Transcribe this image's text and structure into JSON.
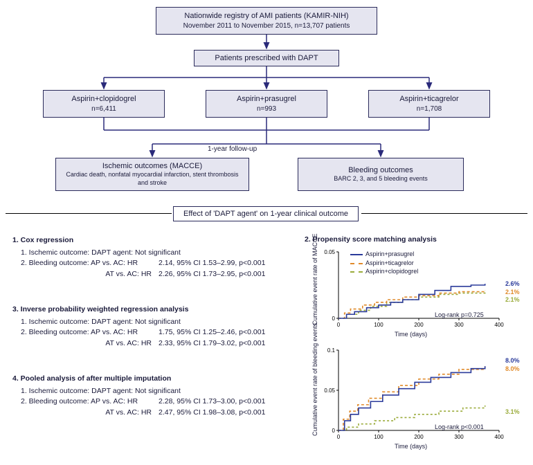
{
  "flow": {
    "top": {
      "line1": "Nationwide registry of AMI patients (KAMIR-NIH)",
      "line2": "November 2011 to November 2015, n=13,707 patients"
    },
    "dapt": "Patients prescribed with DAPT",
    "arms": {
      "ac": {
        "label": "Aspirin+clopidogrel",
        "n": "n=6,411"
      },
      "ap": {
        "label": "Aspirin+prasugrel",
        "n": "n=993"
      },
      "at": {
        "label": "Aspirin+ticagrelor",
        "n": "n=1,708"
      }
    },
    "followup": "1-year follow-up",
    "outcomes": {
      "ischemic": {
        "title": "Ischemic outcomes (MACCE)",
        "sub": "Cardiac death, nonfatal myocardial infarction, stent thrombosis and stroke"
      },
      "bleeding": {
        "title": "Bleeding outcomes",
        "sub": "BARC 2, 3, and 5 bleeding events"
      }
    }
  },
  "section_title": "Effect of 'DAPT agent' on 1-year clinical outcome",
  "analyses": {
    "cox": {
      "title": "1. Cox regression",
      "l1": "1. Ischemic outcome: DAPT agent: Not significant",
      "l2a": "2. Bleeding outcome: AP vs. AC: HR",
      "l2b": "2.14, 95% CI 1.53–2.99, p<0.001",
      "l3a": "AT vs. AC: HR",
      "l3b": "2.26, 95% CI 1.73–2.95, p<0.001"
    },
    "ipw": {
      "title": "3. Inverse probability weighted regression analysis",
      "l1": "1. Ischemic outcome: DAPT agent: Not significant",
      "l2a": "2. Bleeding outcome: AP vs. AC: HR",
      "l2b": "1.75, 95% CI 1.25–2.46, p<0.001",
      "l3a": "AT vs. AC: HR",
      "l3b": "2.33, 95% CI 1.79–3.02, p<0.001"
    },
    "pooled": {
      "title": "4. Pooled analysis of after multiple imputation",
      "l1": "1. Ischemic outcome: DAPT agent: Not significant",
      "l2a": "2. Bleeding outcome: AP vs. AC: HR",
      "l2b": "2.28, 95% CI 1.73–3.00, p<0.001",
      "l3a": "AT vs. AC: HR",
      "l3b": "2.47, 95% CI 1.98–3.08, p<0.001"
    },
    "psm_title": "2. Propensity score matching analysis"
  },
  "charts": {
    "colors": {
      "prasugrel": "#2a3a9a",
      "ticagrelor": "#e08a2a",
      "clopidogrel": "#9aab3a",
      "axis": "#000000",
      "bg": "#ffffff"
    },
    "legend": {
      "ap": "Aspirin+prasugrel",
      "at": "Aspirin+ticagrelor",
      "ac": "Aspirin+clopidogrel"
    },
    "macce": {
      "ylabel": "Cumulative event rate of MACCE",
      "xlabel": "Time (days)",
      "ylim": [
        0,
        0.05
      ],
      "ytick": 0.05,
      "xlim": [
        0,
        400
      ],
      "xticks": [
        0,
        100,
        200,
        300,
        400
      ],
      "end": {
        "ap": "2.6%",
        "at": "2.1%",
        "ac": "2.1%"
      },
      "logrank": "Log-rank p=0.725",
      "series": {
        "ap": [
          [
            0,
            0
          ],
          [
            20,
            0.003
          ],
          [
            40,
            0.005
          ],
          [
            70,
            0.008
          ],
          [
            100,
            0.01
          ],
          [
            130,
            0.012
          ],
          [
            160,
            0.014
          ],
          [
            200,
            0.018
          ],
          [
            240,
            0.021
          ],
          [
            280,
            0.024
          ],
          [
            330,
            0.025
          ],
          [
            365,
            0.026
          ]
        ],
        "at": [
          [
            0,
            0
          ],
          [
            15,
            0.004
          ],
          [
            30,
            0.007
          ],
          [
            60,
            0.01
          ],
          [
            90,
            0.012
          ],
          [
            120,
            0.014
          ],
          [
            160,
            0.016
          ],
          [
            200,
            0.017
          ],
          [
            250,
            0.019
          ],
          [
            300,
            0.02
          ],
          [
            365,
            0.021
          ]
        ],
        "ac": [
          [
            0,
            0
          ],
          [
            20,
            0.003
          ],
          [
            50,
            0.006
          ],
          [
            80,
            0.009
          ],
          [
            120,
            0.012
          ],
          [
            160,
            0.014
          ],
          [
            200,
            0.016
          ],
          [
            250,
            0.018
          ],
          [
            300,
            0.019
          ],
          [
            365,
            0.021
          ]
        ]
      }
    },
    "bleed": {
      "ylabel": "Cumulative event rate of bleeding events",
      "xlabel": "Time (days)",
      "ylim": [
        0,
        0.1
      ],
      "ytick1": 0.05,
      "ytick2": 0.1,
      "xlim": [
        0,
        400
      ],
      "xticks": [
        0,
        100,
        200,
        300,
        400
      ],
      "end": {
        "ap": "8.0%",
        "at": "8.0%",
        "ac": "3.1%"
      },
      "logrank": "Log-rank p<0.001",
      "series": {
        "ap": [
          [
            0,
            0
          ],
          [
            15,
            0.012
          ],
          [
            30,
            0.02
          ],
          [
            50,
            0.028
          ],
          [
            80,
            0.036
          ],
          [
            110,
            0.044
          ],
          [
            150,
            0.052
          ],
          [
            190,
            0.06
          ],
          [
            230,
            0.066
          ],
          [
            280,
            0.072
          ],
          [
            330,
            0.077
          ],
          [
            365,
            0.08
          ]
        ],
        "at": [
          [
            0,
            0
          ],
          [
            12,
            0.014
          ],
          [
            28,
            0.024
          ],
          [
            48,
            0.032
          ],
          [
            75,
            0.04
          ],
          [
            110,
            0.048
          ],
          [
            150,
            0.056
          ],
          [
            200,
            0.064
          ],
          [
            250,
            0.07
          ],
          [
            300,
            0.076
          ],
          [
            365,
            0.08
          ]
        ],
        "ac": [
          [
            0,
            0
          ],
          [
            20,
            0.004
          ],
          [
            50,
            0.008
          ],
          [
            90,
            0.012
          ],
          [
            140,
            0.016
          ],
          [
            190,
            0.02
          ],
          [
            250,
            0.024
          ],
          [
            310,
            0.028
          ],
          [
            365,
            0.031
          ]
        ]
      }
    }
  }
}
